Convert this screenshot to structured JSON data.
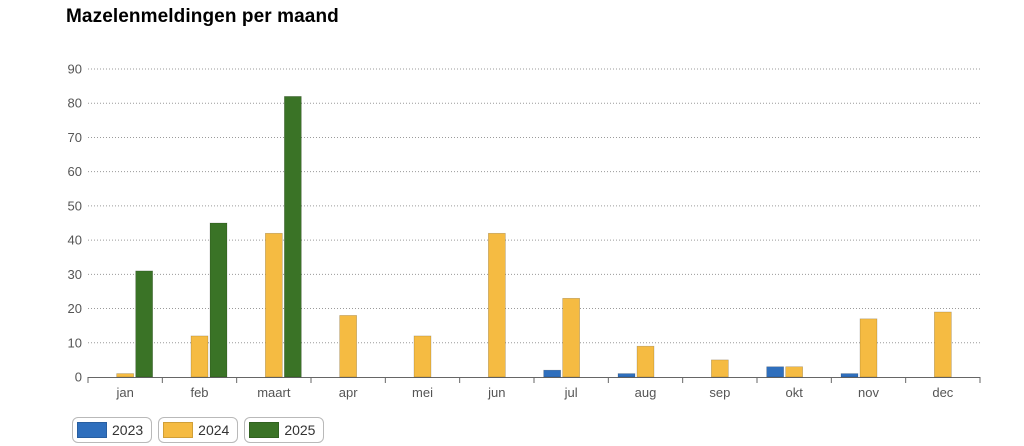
{
  "chart_data": {
    "type": "bar",
    "title": "Mazelenmeldingen per maand",
    "categories": [
      "jan",
      "feb",
      "maart",
      "apr",
      "mei",
      "jun",
      "jul",
      "aug",
      "sep",
      "okt",
      "nov",
      "dec"
    ],
    "series": [
      {
        "name": "2023",
        "color": "#2f6fbd",
        "values": [
          0,
          0,
          0,
          0,
          0,
          0,
          2,
          1,
          0,
          3,
          1,
          0
        ]
      },
      {
        "name": "2024",
        "color": "#f5bb42",
        "values": [
          1,
          12,
          42,
          18,
          12,
          42,
          23,
          9,
          5,
          3,
          17,
          19
        ]
      },
      {
        "name": "2025",
        "color": "#3a7326",
        "values": [
          31,
          45,
          82,
          null,
          null,
          null,
          null,
          null,
          null,
          null,
          null,
          null
        ]
      }
    ],
    "ylim": [
      0,
      90
    ],
    "yticks": [
      0,
      10,
      20,
      30,
      40,
      50,
      60,
      70,
      80,
      90
    ],
    "xlabel": "",
    "ylabel": "",
    "grid": true,
    "legend_position": "bottom-left"
  }
}
